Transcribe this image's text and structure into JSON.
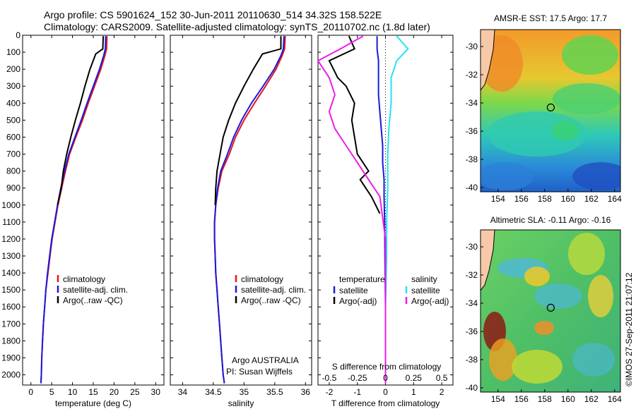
{
  "header": {
    "line1": "Argo profile: CS 5901624_152 30-Jun-2011 20110630_514 34.32S 158.522E",
    "line2": "Climatology: CARS2009. Satellite-adjusted climatology: synTS_20110702.nc (1.8d later)"
  },
  "credits": {
    "argo": "Argo AUSTRALIA",
    "pi": "PI: Susan Wijffels",
    "stamp": "©IMOS 27-Sep-2011 21:07:12"
  },
  "colors": {
    "climatology": "#e8141e",
    "satellite_adj": "#1a1adc",
    "argo": "#000000",
    "sal_satellite": "#22e4f0",
    "sal_argo": "#ec1cec",
    "land": "#f7c9a8"
  },
  "chart_data": [
    {
      "type": "line",
      "id": "temperature",
      "xlabel": "temperature (deg C)",
      "ylabel": "",
      "xlim": [
        -2,
        32
      ],
      "ylim": [
        2060,
        0
      ],
      "xticks": [
        0,
        5,
        10,
        15,
        20,
        25,
        30
      ],
      "yticks": [
        0,
        100,
        200,
        300,
        400,
        500,
        600,
        700,
        800,
        900,
        1000,
        1100,
        1200,
        1300,
        1400,
        1500,
        1600,
        1700,
        1800,
        1900,
        2000
      ],
      "legend": [
        "climatology",
        "satellite-adj. clim.",
        "Argo(..raw -QC)"
      ],
      "series": [
        {
          "name": "climatology",
          "color": "#e8141e",
          "x": [
            18.3,
            18.2,
            17.8,
            16.8,
            15.3,
            13.8,
            12.4,
            10.8,
            9.3,
            8.3,
            7.4,
            6.5,
            5.8,
            5.1,
            4.6,
            4.1,
            3.6,
            3.3,
            3.0,
            2.8,
            2.6,
            2.5,
            2.4
          ],
          "y": [
            5,
            80,
            120,
            200,
            300,
            400,
            500,
            600,
            700,
            800,
            900,
            1000,
            1100,
            1200,
            1300,
            1400,
            1500,
            1600,
            1700,
            1800,
            1900,
            2000,
            2050
          ]
        },
        {
          "name": "satellite-adj. clim.",
          "color": "#1a1adc",
          "x": [
            18.0,
            17.9,
            17.5,
            16.5,
            15.0,
            13.5,
            12.1,
            10.6,
            9.1,
            8.1,
            7.2,
            6.4,
            5.7,
            5.0,
            4.5,
            4.0,
            3.6,
            3.3,
            3.0,
            2.8,
            2.6,
            2.5,
            2.4
          ],
          "y": [
            5,
            80,
            120,
            200,
            300,
            400,
            500,
            600,
            700,
            800,
            900,
            1000,
            1100,
            1200,
            1300,
            1400,
            1500,
            1600,
            1700,
            1800,
            1900,
            2000,
            2050
          ]
        },
        {
          "name": "Argo(..raw -QC)",
          "color": "#000000",
          "x": [
            17.4,
            17.3,
            15.6,
            14.2,
            13.0,
            11.9,
            10.7,
            9.6,
            8.6,
            7.8,
            7.3,
            6.4
          ],
          "y": [
            5,
            80,
            110,
            200,
            300,
            400,
            500,
            600,
            700,
            800,
            900,
            1000
          ]
        }
      ]
    },
    {
      "type": "line",
      "id": "salinity",
      "xlabel": "salinity",
      "xlim": [
        33.8,
        36.1
      ],
      "ylim": [
        2060,
        0
      ],
      "xticks": [
        34,
        34.5,
        35,
        35.5,
        36
      ],
      "legend": [
        "climatology",
        "satellite-adj. clim.",
        "Argo(..raw -QC)"
      ],
      "series": [
        {
          "name": "climatology",
          "color": "#e8141e",
          "x": [
            35.67,
            35.66,
            35.62,
            35.52,
            35.35,
            35.17,
            35.0,
            34.86,
            34.76,
            34.64,
            34.58,
            34.54,
            34.52,
            34.52,
            34.53,
            34.54,
            34.56,
            34.58,
            34.6,
            34.62,
            34.64,
            34.66,
            34.68
          ],
          "y": [
            5,
            80,
            120,
            200,
            300,
            400,
            500,
            600,
            700,
            800,
            900,
            1000,
            1100,
            1200,
            1300,
            1400,
            1500,
            1600,
            1700,
            1800,
            1900,
            2000,
            2050
          ]
        },
        {
          "name": "satellite-adj. clim.",
          "color": "#1a1adc",
          "x": [
            35.65,
            35.64,
            35.6,
            35.49,
            35.31,
            35.12,
            34.96,
            34.83,
            34.73,
            34.62,
            34.57,
            34.54,
            34.52,
            34.52,
            34.53,
            34.54,
            34.56,
            34.58,
            34.6,
            34.62,
            34.64,
            34.66,
            34.68
          ],
          "y": [
            5,
            80,
            120,
            200,
            300,
            400,
            500,
            600,
            700,
            800,
            900,
            1000,
            1100,
            1200,
            1300,
            1400,
            1500,
            1600,
            1700,
            1800,
            1900,
            2000,
            2050
          ]
        },
        {
          "name": "Argo(..raw -QC)",
          "color": "#000000",
          "x": [
            35.6,
            35.6,
            35.3,
            35.15,
            35.0,
            34.86,
            34.75,
            34.66,
            34.61,
            34.56,
            34.54,
            34.53
          ],
          "y": [
            5,
            80,
            110,
            200,
            300,
            400,
            500,
            600,
            700,
            800,
            900,
            1000
          ]
        }
      ]
    },
    {
      "type": "line",
      "id": "difference",
      "xlabel": "T difference from climatology",
      "xlabel2": "S difference from climatology",
      "xlim": [
        -2.4,
        2.4
      ],
      "ylim": [
        2060,
        0
      ],
      "xticks": [
        -2,
        -1,
        0,
        1,
        2
      ],
      "xticks_sal": [
        -0.5,
        -0.25,
        0,
        0.25,
        0.5
      ],
      "legend": {
        "temperature": "temperature",
        "satellite": "satellite",
        "argo": "Argo(-adj)",
        "salinity": "salinity",
        "sal_satellite": "satellite",
        "sal_argo": "Argo(-adj)"
      },
      "series": [
        {
          "name": "satellite",
          "color": "#1a1adc",
          "x": [
            -0.3,
            -0.3,
            -0.25,
            -0.25,
            -0.25,
            -0.2,
            -0.15,
            -0.1,
            -0.1,
            -0.05,
            -0.05,
            -0.03,
            -0.02,
            0,
            0
          ],
          "y": [
            5,
            80,
            150,
            250,
            350,
            450,
            550,
            650,
            750,
            850,
            950,
            1100,
            1300,
            1600,
            2050
          ]
        },
        {
          "name": "Argo(-adj)",
          "color": "#000000",
          "x": [
            -1.3,
            -1.1,
            -2.0,
            -1.7,
            -1.4,
            -1.1,
            -1.2,
            -1.1,
            -1.0,
            -0.8,
            -0.6,
            -0.9,
            -0.7,
            -0.5,
            -0.35,
            -0.2
          ],
          "y": [
            5,
            80,
            150,
            250,
            300,
            400,
            500,
            600,
            700,
            750,
            800,
            850,
            900,
            950,
            1000,
            1050
          ]
        },
        {
          "name": "sal satellite",
          "color": "#22e4f0",
          "x": [
            0.1,
            0.2,
            0.1,
            0.05,
            0.05,
            0.03,
            0.02,
            0.02,
            0.01,
            0.01,
            0,
            0
          ],
          "y": [
            5,
            80,
            150,
            250,
            400,
            550,
            700,
            900,
            1100,
            1300,
            1600,
            2050
          ]
        },
        {
          "name": "sal Argo(-adj)",
          "color": "#ec1cec",
          "x": [
            -0.2,
            -0.4,
            -0.6,
            -0.5,
            -0.45,
            -0.5,
            -0.45,
            -0.35,
            -0.25,
            -0.15,
            -0.05,
            0,
            0
          ],
          "y": [
            5,
            80,
            150,
            250,
            350,
            450,
            550,
            650,
            750,
            850,
            950,
            1200,
            2050
          ]
        }
      ]
    },
    {
      "type": "heatmap",
      "id": "sst_map",
      "title": "AMSR-E SST: 17.5 Argo: 17.7",
      "xlim": [
        152.5,
        164.5
      ],
      "ylim": [
        -40.3,
        -28.8
      ],
      "xticks": [
        154,
        156,
        158,
        160,
        162,
        164
      ],
      "yticks": [
        -30,
        -32,
        -34,
        -36,
        -38,
        -40
      ],
      "marker": {
        "lon": 158.522,
        "lat": -34.32
      }
    },
    {
      "type": "heatmap",
      "id": "sla_map",
      "title": "Altimetric SLA: -0.11 Argo: -0.16",
      "xlim": [
        152.5,
        164.5
      ],
      "ylim": [
        -40.3,
        -28.8
      ],
      "xticks": [
        154,
        156,
        158,
        160,
        162,
        164
      ],
      "yticks": [
        -30,
        -32,
        -34,
        -36,
        -38,
        -40
      ],
      "marker": {
        "lon": 158.522,
        "lat": -34.32
      }
    }
  ]
}
